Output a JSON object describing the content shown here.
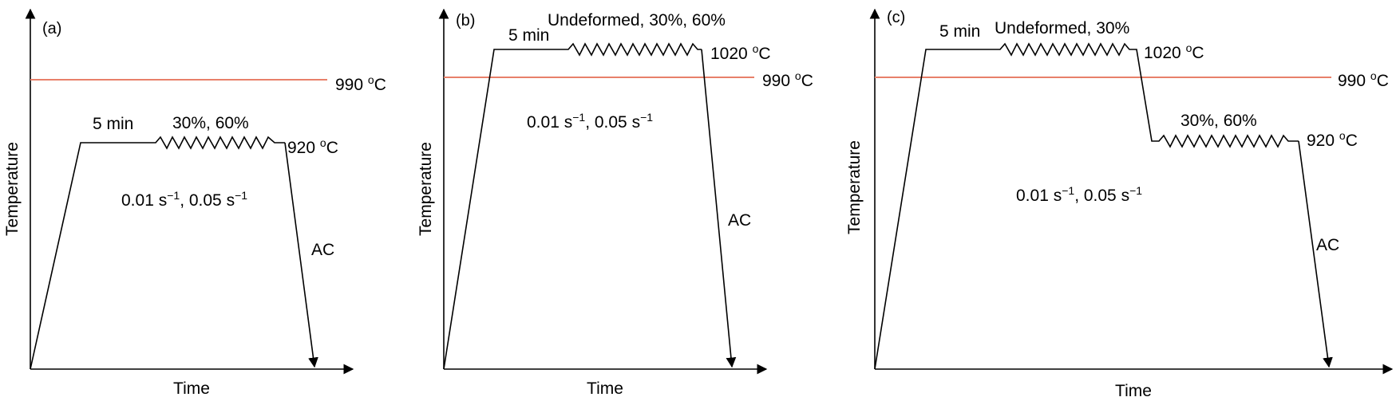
{
  "panels": [
    {
      "id": "a",
      "tag": "(a)",
      "xlabel": "Time",
      "ylabel": "Temperature",
      "reference": {
        "value": "990",
        "unit": "oC"
      },
      "hold_label": "5 min",
      "deform_labels": [
        "30%, 60%"
      ],
      "temp_labels": [
        {
          "value": "920",
          "unit": "oC"
        }
      ],
      "strain_rate": {
        "a": "0.01 s",
        "b": ", 0.05 s",
        "exp": "−1"
      },
      "cooling": "AC"
    },
    {
      "id": "b",
      "tag": "(b)",
      "xlabel": "Time",
      "ylabel": "Temperature",
      "reference": {
        "value": "990",
        "unit": "oC"
      },
      "hold_label": "5 min",
      "deform_labels": [
        "Undeformed, 30%, 60%"
      ],
      "temp_labels": [
        {
          "value": "1020",
          "unit": "oC"
        }
      ],
      "strain_rate": {
        "a": "0.01 s",
        "b": ", 0.05 s",
        "exp": "−1"
      },
      "cooling": "AC"
    },
    {
      "id": "c",
      "tag": "(c)",
      "xlabel": "Time",
      "ylabel": "Temperature",
      "reference": {
        "value": "990",
        "unit": "oC"
      },
      "hold_label": "5 min",
      "deform_labels": [
        "Undeformed, 30%",
        "30%, 60%"
      ],
      "temp_labels": [
        {
          "value": "1020",
          "unit": "oC"
        },
        {
          "value": "920",
          "unit": "oC"
        }
      ],
      "strain_rate": {
        "a": "0.01 s",
        "b": ", 0.05 s",
        "exp": "−1"
      },
      "cooling": "AC"
    }
  ],
  "colors": {
    "reference_line": "#e8806a",
    "path": "#000000"
  }
}
